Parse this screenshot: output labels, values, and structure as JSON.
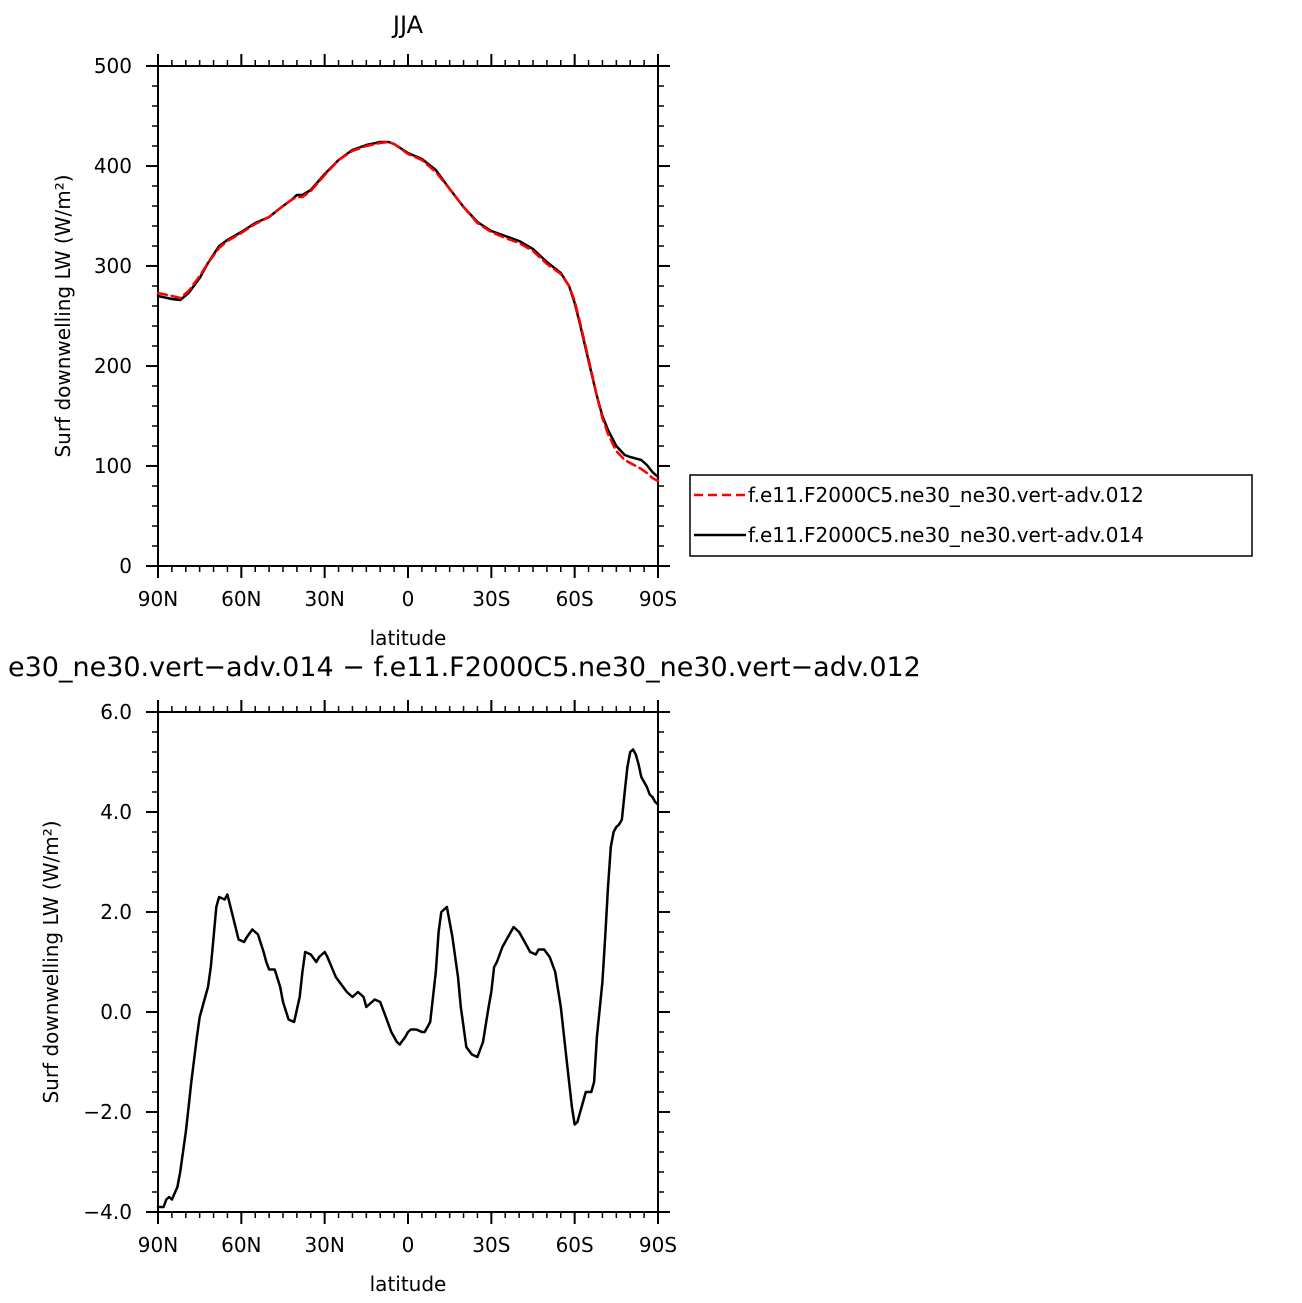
{
  "chart_data": [
    {
      "type": "line",
      "title": "JJA",
      "xlabel": "latitude",
      "ylabel": "Surf downwelling LW (W/m²)",
      "xlim": [
        90,
        -90
      ],
      "ylim": [
        0,
        500
      ],
      "x_ticks": [
        {
          "value": 90,
          "label": "90N"
        },
        {
          "value": 60,
          "label": "60N"
        },
        {
          "value": 30,
          "label": "30N"
        },
        {
          "value": 0,
          "label": "0"
        },
        {
          "value": -30,
          "label": "30S"
        },
        {
          "value": -60,
          "label": "60S"
        },
        {
          "value": -90,
          "label": "90S"
        }
      ],
      "y_ticks": [
        {
          "value": 0,
          "label": "0"
        },
        {
          "value": 100,
          "label": "100"
        },
        {
          "value": 200,
          "label": "200"
        },
        {
          "value": 300,
          "label": "300"
        },
        {
          "value": 400,
          "label": "400"
        },
        {
          "value": 500,
          "label": "500"
        }
      ],
      "grid": false,
      "legend": {
        "placement": "right",
        "entries": [
          {
            "name": "f.e11.F2000C5.ne30_ne30.vert-adv.012",
            "color": "#ff0000",
            "style": "dashed"
          },
          {
            "name": "f.e11.F2000C5.ne30_ne30.vert-adv.014",
            "color": "#000000",
            "style": "solid"
          }
        ]
      },
      "series": [
        {
          "name": "f.e11.F2000C5.ne30_ne30.vert-adv.012",
          "color": "#ff0000",
          "style": "dashed",
          "x": [
            90,
            85,
            82,
            79,
            75,
            72,
            68,
            65,
            60,
            55,
            50,
            45,
            42,
            40,
            38,
            35,
            30,
            25,
            20,
            15,
            10,
            7,
            5,
            0,
            -5,
            -10,
            -15,
            -20,
            -25,
            -30,
            -35,
            -40,
            -45,
            -50,
            -55,
            -58,
            -60,
            -62,
            -65,
            -68,
            -70,
            -72,
            -75,
            -78,
            -80,
            -84,
            -86,
            -88,
            -90
          ],
          "y": [
            273,
            270,
            268,
            275,
            290,
            303,
            318,
            325,
            333,
            342,
            349,
            360,
            366,
            369,
            369,
            375,
            391,
            406,
            415,
            420,
            423,
            424,
            422,
            412,
            406,
            394,
            377,
            359,
            343,
            334,
            328,
            323,
            315,
            302,
            292,
            280,
            265,
            243,
            207,
            170,
            148,
            132,
            115,
            106,
            103,
            97,
            93,
            88,
            85
          ]
        },
        {
          "name": "f.e11.F2000C5.ne30_ne30.vert-adv.014",
          "color": "#000000",
          "style": "solid",
          "x": [
            90,
            85,
            82,
            79,
            75,
            72,
            68,
            65,
            60,
            55,
            50,
            45,
            42,
            40,
            38,
            35,
            30,
            25,
            20,
            15,
            10,
            7,
            5,
            0,
            -5,
            -10,
            -15,
            -20,
            -25,
            -30,
            -35,
            -40,
            -45,
            -50,
            -55,
            -58,
            -60,
            -62,
            -65,
            -68,
            -70,
            -72,
            -75,
            -78,
            -80,
            -84,
            -86,
            -88,
            -90
          ],
          "y": [
            270,
            267,
            266,
            273,
            288,
            303,
            320,
            326,
            334,
            343,
            349,
            360,
            366,
            371,
            371,
            376,
            392,
            406,
            416,
            421,
            424,
            424,
            422,
            413,
            407,
            396,
            377,
            359,
            344,
            335,
            330,
            325,
            317,
            304,
            293,
            280,
            263,
            241,
            205,
            170,
            150,
            136,
            120,
            111,
            109,
            106,
            101,
            94,
            89
          ]
        }
      ]
    },
    {
      "type": "line",
      "title": "e30_ne30.vert−adv.014 − f.e11.F2000C5.ne30_ne30.vert−adv.012",
      "xlabel": "latitude",
      "ylabel": "Surf downwelling LW (W/m²)",
      "xlim": [
        90,
        -90
      ],
      "ylim": [
        -4.0,
        6.0
      ],
      "x_ticks": [
        {
          "value": 90,
          "label": "90N"
        },
        {
          "value": 60,
          "label": "60N"
        },
        {
          "value": 30,
          "label": "30N"
        },
        {
          "value": 0,
          "label": "0"
        },
        {
          "value": -30,
          "label": "30S"
        },
        {
          "value": -60,
          "label": "60S"
        },
        {
          "value": -90,
          "label": "90S"
        }
      ],
      "y_ticks": [
        {
          "value": -4.0,
          "label": "−4.0"
        },
        {
          "value": -2.0,
          "label": "−2.0"
        },
        {
          "value": 0.0,
          "label": "0.0"
        },
        {
          "value": 2.0,
          "label": "2.0"
        },
        {
          "value": 4.0,
          "label": "4.0"
        },
        {
          "value": 6.0,
          "label": "6.0"
        }
      ],
      "grid": false,
      "series": [
        {
          "color": "#000000",
          "style": "solid",
          "x": [
            90,
            88,
            87,
            86,
            85,
            83,
            82,
            80,
            79,
            78,
            76,
            75,
            73,
            72,
            71,
            70,
            69,
            68,
            66,
            65,
            63,
            61,
            59,
            58,
            56,
            54,
            52,
            51,
            50,
            48,
            46,
            45,
            43,
            41,
            39,
            38,
            37,
            35,
            33,
            32,
            30,
            29,
            26,
            24,
            22,
            20,
            19,
            18,
            16,
            15,
            14,
            12,
            10,
            8,
            6,
            4,
            3,
            1,
            0,
            -1,
            -2,
            -3,
            -5,
            -6,
            -8,
            -9,
            -10,
            -11,
            -12,
            -14,
            -16,
            -18,
            -19,
            -20,
            -21,
            -23,
            -25,
            -27,
            -29,
            -30,
            -31,
            -32,
            -34,
            -35,
            -37,
            -38,
            -40,
            -42,
            -44,
            -46,
            -47,
            -49,
            -51,
            -53,
            -55,
            -57,
            -59,
            -60,
            -61,
            -62,
            -64,
            -65,
            -66,
            -67,
            -68,
            -70,
            -71,
            -72,
            -73,
            -74,
            -75,
            -76,
            -77,
            -78,
            -79,
            -80,
            -81,
            -82,
            -83,
            -84,
            -85,
            -86,
            -87,
            -88,
            -89,
            -90
          ],
          "y": [
            -3.9,
            -3.9,
            -3.75,
            -3.7,
            -3.75,
            -3.5,
            -3.2,
            -2.4,
            -1.9,
            -1.4,
            -0.5,
            -0.1,
            0.3,
            0.5,
            0.9,
            1.5,
            2.1,
            2.3,
            2.25,
            2.35,
            1.9,
            1.45,
            1.4,
            1.5,
            1.65,
            1.55,
            1.2,
            1.0,
            0.85,
            0.85,
            0.5,
            0.2,
            -0.15,
            -0.2,
            0.3,
            0.8,
            1.2,
            1.15,
            1.0,
            1.1,
            1.2,
            1.1,
            0.7,
            0.55,
            0.4,
            0.3,
            0.35,
            0.4,
            0.3,
            0.1,
            0.15,
            0.25,
            0.2,
            -0.1,
            -0.4,
            -0.6,
            -0.65,
            -0.5,
            -0.4,
            -0.35,
            -0.35,
            -0.35,
            -0.4,
            -0.4,
            -0.2,
            0.3,
            0.8,
            1.6,
            2.0,
            2.1,
            1.5,
            0.7,
            0.1,
            -0.3,
            -0.7,
            -0.85,
            -0.9,
            -0.6,
            0.1,
            0.4,
            0.9,
            1.0,
            1.3,
            1.4,
            1.6,
            1.7,
            1.6,
            1.4,
            1.2,
            1.15,
            1.25,
            1.25,
            1.1,
            0.8,
            0.1,
            -0.9,
            -1.9,
            -2.25,
            -2.2,
            -2.0,
            -1.6,
            -1.6,
            -1.6,
            -1.4,
            -0.5,
            0.6,
            1.5,
            2.5,
            3.3,
            3.6,
            3.7,
            3.75,
            3.85,
            4.4,
            4.9,
            5.2,
            5.25,
            5.15,
            4.95,
            4.7,
            4.6,
            4.5,
            4.35,
            4.3,
            4.2,
            4.15
          ]
        }
      ]
    }
  ]
}
